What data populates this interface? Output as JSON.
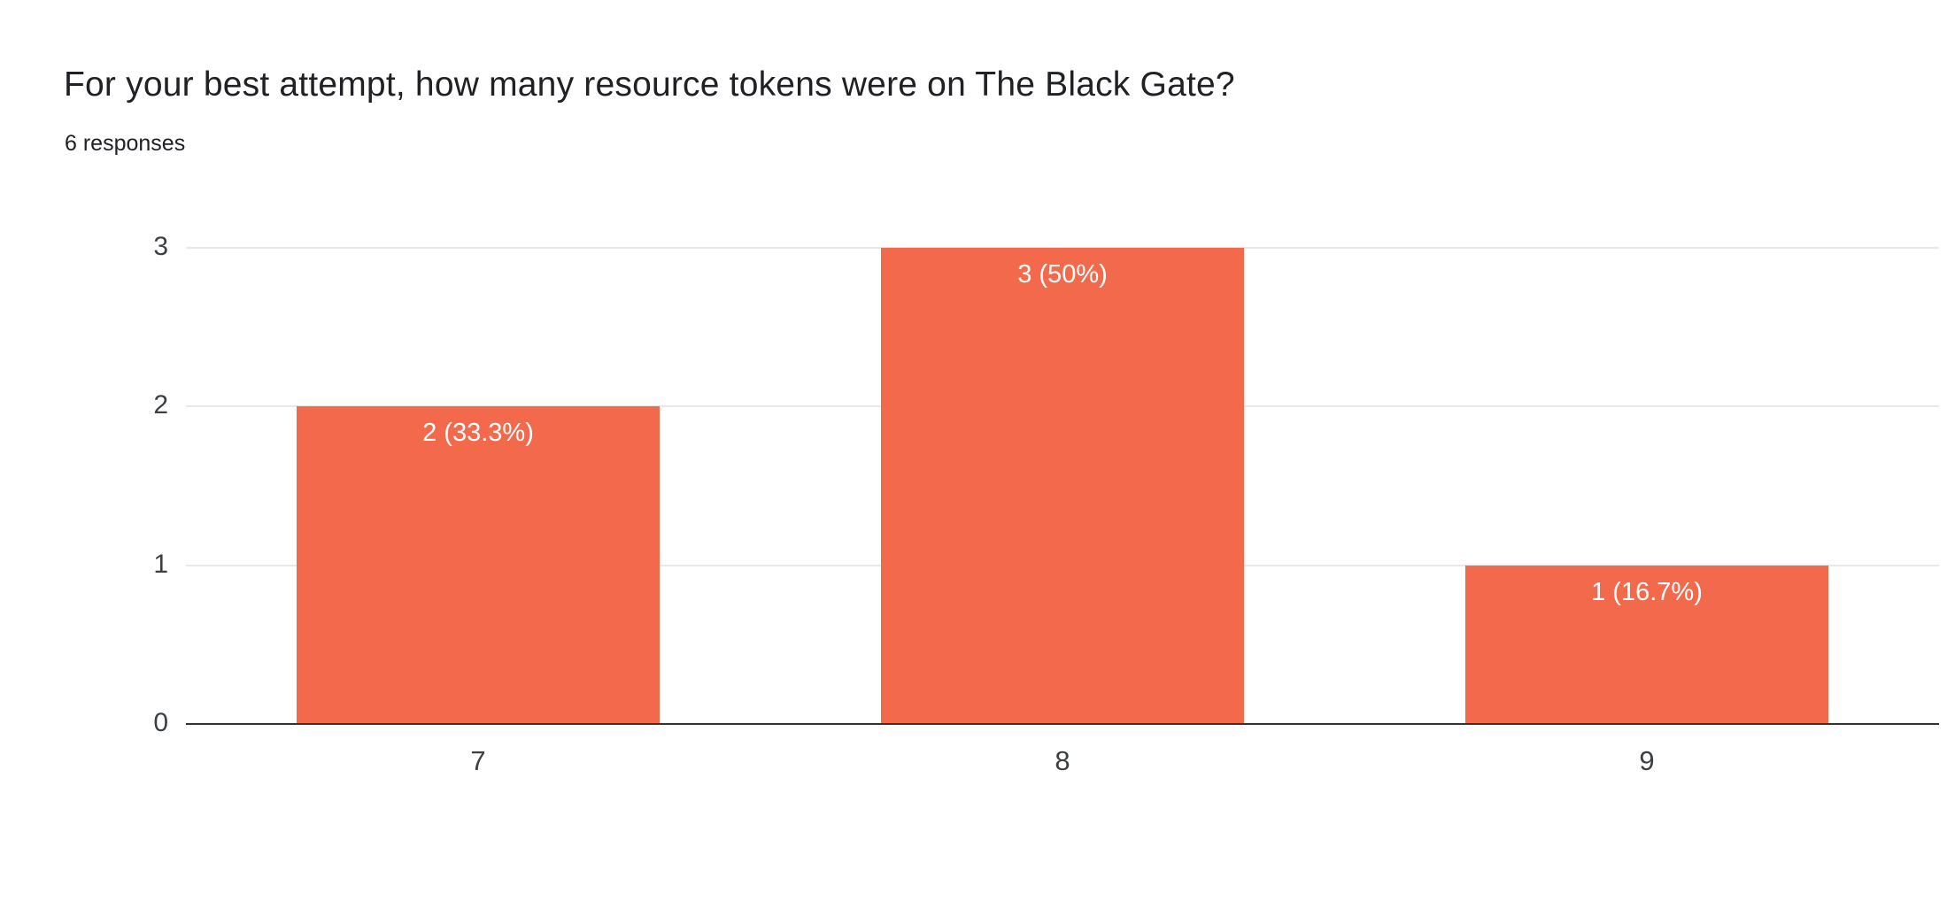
{
  "header": {
    "title": "For your best attempt, how many resource tokens were on The Black Gate?",
    "responses": "6 responses"
  },
  "chart_data": {
    "type": "bar",
    "title": "For your best attempt, how many resource tokens were on The Black Gate?",
    "subtitle": "6 responses",
    "categories": [
      "7",
      "8",
      "9"
    ],
    "values": [
      2,
      3,
      1
    ],
    "bar_labels": [
      "2 (33.3%)",
      "3 (50%)",
      "1 (16.7%)"
    ],
    "yticks": [
      0,
      1,
      2,
      3
    ],
    "ylim": [
      0,
      3
    ],
    "xlabel": "",
    "ylabel": "",
    "grid": true,
    "legend": "none",
    "bar_color": "#F2694C",
    "bar_label_color": "#FFFFFF",
    "gridline_color": "#E8E8E8",
    "baseline_color": "#333333",
    "tick_label_color": "#3C4043"
  }
}
